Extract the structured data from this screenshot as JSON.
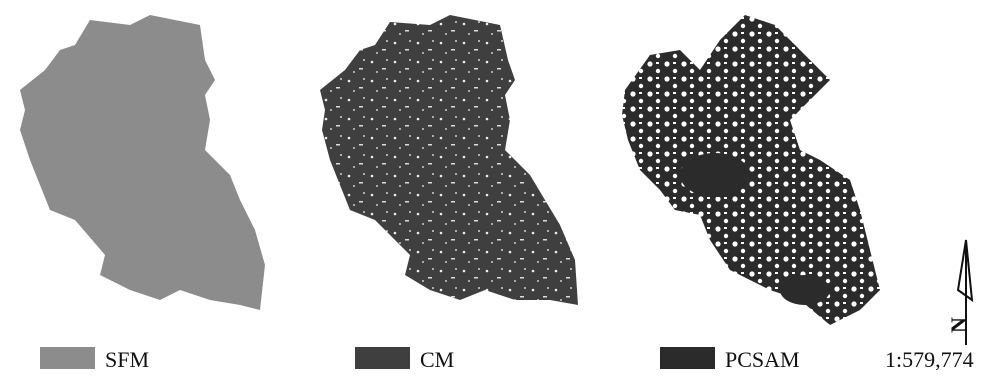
{
  "maps": [
    {
      "label": "SFM"
    },
    {
      "label": "CM"
    },
    {
      "label": "PCSAM"
    }
  ],
  "scale": "1:579,774",
  "north": "N"
}
